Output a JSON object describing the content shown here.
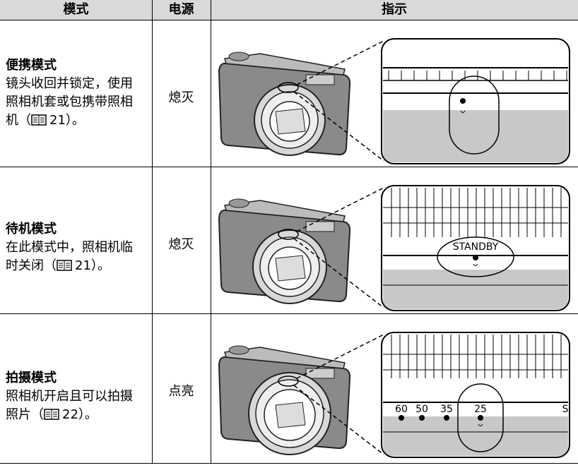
{
  "table": {
    "header": [
      "模式",
      "电源",
      "指示"
    ],
    "rows": [
      {
        "title": "便携模式",
        "description": "镜头收回并锁定，使用照相机套或包携带照相机（",
        "ref": "21）。",
        "power": "熄灭",
        "labels": []
      },
      {
        "title": "待机模式",
        "description": "在此模式中，照相机临时关闭（",
        "ref": "21）。",
        "power": "熄灭",
        "labels": [
          "STANDBY"
        ]
      },
      {
        "title": "拍摄模式",
        "description": "照相机开启且可以拍摄照片（",
        "ref": "22）。",
        "power": "点亮",
        "labels": [
          "60",
          "50",
          "35",
          "25",
          "S"
        ]
      }
    ]
  }
}
